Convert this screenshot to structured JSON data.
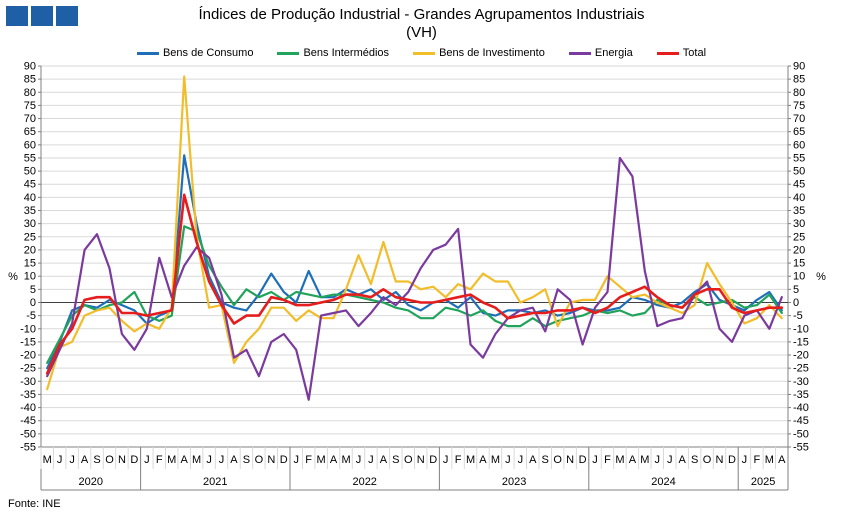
{
  "header": {
    "title": "Índices de Produção Industrial - Grandes Agrupamentos Industriais",
    "subtitle": "(VH)"
  },
  "footer": {
    "source": "Fonte: INE"
  },
  "colors": {
    "logo": "#1f5fa6",
    "grid": "#d9d9d9",
    "axis": "#808080"
  },
  "chart_data": {
    "type": "line",
    "title": "Índices de Produção Industrial - Grandes Agrupamentos Industriais",
    "subtitle": "(VH)",
    "ylabel_left": "%",
    "ylabel_right": "%",
    "ylim": [
      -55,
      90
    ],
    "yticks": [
      -55,
      -50,
      -45,
      -40,
      -35,
      -30,
      -25,
      -20,
      -15,
      -10,
      -5,
      0,
      5,
      10,
      15,
      20,
      25,
      30,
      35,
      40,
      45,
      50,
      55,
      60,
      65,
      70,
      75,
      80,
      85,
      90
    ],
    "grid": true,
    "legend_position": "top",
    "x": [
      "M",
      "J",
      "J",
      "A",
      "S",
      "O",
      "N",
      "D",
      "J",
      "F",
      "M",
      "A",
      "M",
      "J",
      "J",
      "A",
      "S",
      "O",
      "N",
      "D",
      "J",
      "F",
      "M",
      "A",
      "M",
      "J",
      "J",
      "A",
      "S",
      "O",
      "N",
      "D",
      "J",
      "F",
      "M",
      "A",
      "M",
      "J",
      "J",
      "A",
      "S",
      "O",
      "N",
      "D",
      "J",
      "F",
      "M",
      "A",
      "M",
      "J",
      "J",
      "A",
      "S",
      "O",
      "N",
      "D",
      "J",
      "F",
      "M",
      "A"
    ],
    "years": [
      {
        "label": "2020",
        "start": 0,
        "end": 7
      },
      {
        "label": "2021",
        "start": 8,
        "end": 19
      },
      {
        "label": "2022",
        "start": 20,
        "end": 31
      },
      {
        "label": "2023",
        "start": 32,
        "end": 43
      },
      {
        "label": "2024",
        "start": 44,
        "end": 55
      },
      {
        "label": "2025",
        "start": 56,
        "end": 59
      }
    ],
    "series": [
      {
        "name": "Bens de Consumo",
        "color": "#1f6fb8",
        "values": [
          -25,
          -15,
          -3,
          -1,
          -2,
          1,
          -1,
          -3,
          -8,
          -5,
          -3,
          56,
          30,
          10,
          0,
          -2,
          -3,
          3,
          11,
          4,
          0,
          12,
          2,
          2,
          5,
          3,
          5,
          1,
          4,
          -1,
          -3,
          0,
          1,
          -2,
          2,
          -4,
          -5,
          -3,
          -3,
          -4,
          -3,
          -5,
          -4,
          -2,
          -3,
          -3,
          -2,
          2,
          1,
          -1,
          -2,
          0,
          4,
          7,
          1,
          -1,
          -3,
          1,
          4,
          -3
        ]
      },
      {
        "name": "Bens Intermédios",
        "color": "#21a35b",
        "values": [
          -23,
          -14,
          -5,
          -1,
          -3,
          -1,
          0,
          4,
          -5,
          -7,
          -5,
          29,
          27,
          14,
          6,
          -1,
          5,
          2,
          4,
          1,
          4,
          3,
          2,
          3,
          3,
          2,
          1,
          0,
          -2,
          -3,
          -6,
          -6,
          -2,
          -3,
          -5,
          -3,
          -7,
          -9,
          -9,
          -6,
          -9,
          -7,
          -6,
          -5,
          -3,
          -4,
          -3,
          -5,
          -4,
          1,
          -1,
          -2,
          2,
          -1,
          0,
          1,
          -2,
          -1,
          3,
          -4
        ]
      },
      {
        "name": "Bens de Investimento",
        "color": "#f2bd2a",
        "values": [
          -33,
          -17,
          -15,
          -5,
          -3,
          -2,
          -7,
          -11,
          -8,
          -10,
          -2,
          86,
          25,
          -2,
          -1,
          -23,
          -15,
          -10,
          -2,
          -2,
          -7,
          -3,
          -6,
          -6,
          5,
          18,
          7,
          23,
          8,
          8,
          5,
          6,
          2,
          7,
          5,
          11,
          8,
          8,
          0,
          2,
          5,
          -9,
          0,
          1,
          1,
          10,
          6,
          2,
          3,
          0,
          -2,
          -4,
          -1,
          15,
          7,
          0,
          -8,
          -6,
          -1,
          -6
        ]
      },
      {
        "name": "Energia",
        "color": "#7a3a9e",
        "values": [
          -28,
          -18,
          -8,
          20,
          26,
          13,
          -12,
          -18,
          -10,
          17,
          2,
          14,
          21,
          17,
          3,
          -21,
          -18,
          -28,
          -15,
          -12,
          -18,
          -37,
          -5,
          -4,
          -3,
          -9,
          -4,
          2,
          -1,
          4,
          13,
          20,
          22,
          28,
          -16,
          -21,
          -12,
          -6,
          -3,
          -2,
          -11,
          5,
          1,
          -16,
          -2,
          4,
          55,
          48,
          12,
          -9,
          -7,
          -6,
          3,
          8,
          -10,
          -15,
          -5,
          -3,
          -10,
          2
        ]
      },
      {
        "name": "Total",
        "color": "#e51d1d",
        "values": [
          -27,
          -16,
          -10,
          1,
          2,
          2,
          -4,
          -4,
          -5,
          -4,
          -3,
          41,
          23,
          8,
          -1,
          -8,
          -5,
          -5,
          2,
          1,
          -1,
          -1,
          0,
          1,
          3,
          3,
          2,
          5,
          2,
          1,
          0,
          0,
          1,
          2,
          3,
          0,
          -2,
          -6,
          -5,
          -4,
          -4,
          -3,
          -3,
          -2,
          -4,
          -2,
          2,
          4,
          6,
          2,
          -1,
          -2,
          3,
          5,
          5,
          -2,
          -4,
          -3,
          -2,
          -2
        ]
      }
    ]
  }
}
